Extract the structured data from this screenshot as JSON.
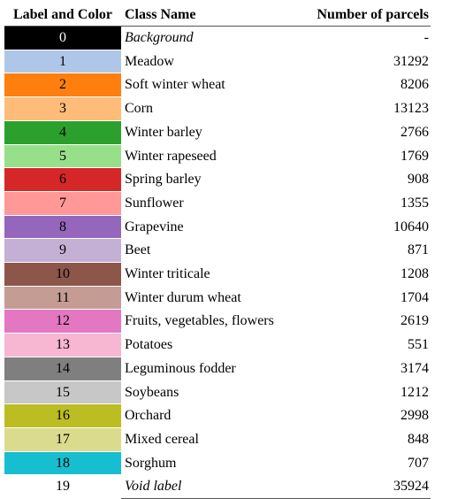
{
  "table": {
    "headers": {
      "label": "Label and Color",
      "name": "Class Name",
      "count": "Number of parcels"
    },
    "rows": [
      {
        "label": "0",
        "name": "Background",
        "count": "-",
        "color": "#000000",
        "text_color": "#ffffff",
        "italic": true
      },
      {
        "label": "1",
        "name": "Meadow",
        "count": "31292",
        "color": "#aec7e8",
        "text_color": "#000000",
        "italic": false
      },
      {
        "label": "2",
        "name": "Soft winter wheat",
        "count": "8206",
        "color": "#ff7f0e",
        "text_color": "#000000",
        "italic": false
      },
      {
        "label": "3",
        "name": "Corn",
        "count": "13123",
        "color": "#ffbb78",
        "text_color": "#000000",
        "italic": false
      },
      {
        "label": "4",
        "name": "Winter barley",
        "count": "2766",
        "color": "#2ca02c",
        "text_color": "#000000",
        "italic": false
      },
      {
        "label": "5",
        "name": "Winter rapeseed",
        "count": "1769",
        "color": "#98df8a",
        "text_color": "#000000",
        "italic": false
      },
      {
        "label": "6",
        "name": "Spring barley",
        "count": "908",
        "color": "#d62728",
        "text_color": "#000000",
        "italic": false
      },
      {
        "label": "7",
        "name": "Sunflower",
        "count": "1355",
        "color": "#ff9896",
        "text_color": "#000000",
        "italic": false
      },
      {
        "label": "8",
        "name": "Grapevine",
        "count": "10640",
        "color": "#9467bd",
        "text_color": "#000000",
        "italic": false
      },
      {
        "label": "9",
        "name": "Beet",
        "count": "871",
        "color": "#c5b0d5",
        "text_color": "#000000",
        "italic": false
      },
      {
        "label": "10",
        "name": "Winter triticale",
        "count": "1208",
        "color": "#8c564b",
        "text_color": "#000000",
        "italic": false
      },
      {
        "label": "11",
        "name": "Winter durum wheat",
        "count": "1704",
        "color": "#c49c94",
        "text_color": "#000000",
        "italic": false
      },
      {
        "label": "12",
        "name": "Fruits,  vegetables, flowers",
        "count": "2619",
        "color": "#e377c2",
        "text_color": "#000000",
        "italic": false
      },
      {
        "label": "13",
        "name": "Potatoes",
        "count": "551",
        "color": "#f7b6d2",
        "text_color": "#000000",
        "italic": false
      },
      {
        "label": "14",
        "name": "Leguminous fodder",
        "count": "3174",
        "color": "#7f7f7f",
        "text_color": "#000000",
        "italic": false
      },
      {
        "label": "15",
        "name": "Soybeans",
        "count": "1212",
        "color": "#c7c7c7",
        "text_color": "#000000",
        "italic": false
      },
      {
        "label": "16",
        "name": "Orchard",
        "count": "2998",
        "color": "#bcbd22",
        "text_color": "#000000",
        "italic": false
      },
      {
        "label": "17",
        "name": "Mixed cereal",
        "count": "848",
        "color": "#dbdb8d",
        "text_color": "#000000",
        "italic": false
      },
      {
        "label": "18",
        "name": "Sorghum",
        "count": "707",
        "color": "#17becf",
        "text_color": "#000000",
        "italic": false
      },
      {
        "label": "19",
        "name": "Void label",
        "count": "35924",
        "color": "#ffffff",
        "text_color": "#000000",
        "italic": true
      }
    ]
  }
}
